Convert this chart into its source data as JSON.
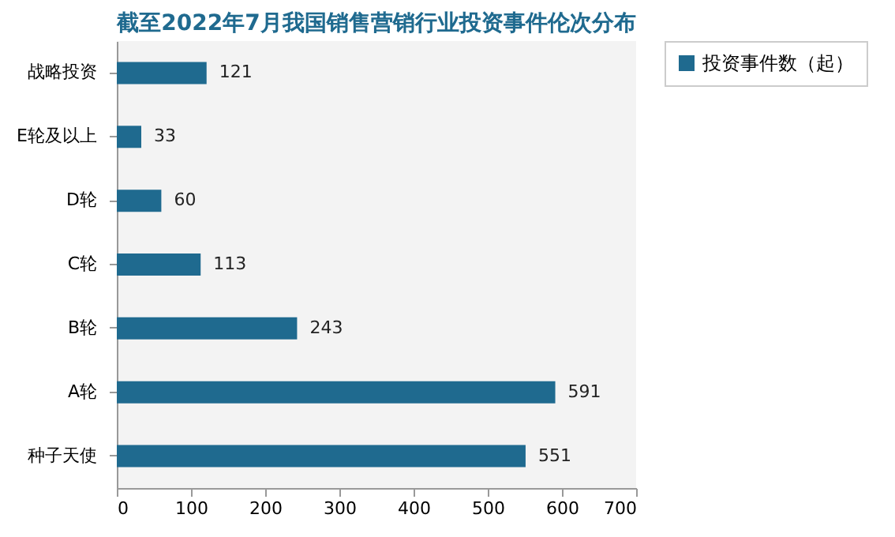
{
  "chart_data": {
    "type": "bar",
    "orientation": "horizontal",
    "title": "截至2022年7月我国销售营销行业投资事件伦次分布",
    "categories": [
      "战略投资",
      "E轮及以上",
      "D轮",
      "C轮",
      "B轮",
      "A轮",
      "种子天使"
    ],
    "series": [
      {
        "name": "投资事件数（起）",
        "color": "#1f6a8f",
        "values": [
          121,
          33,
          60,
          113,
          243,
          591,
          551
        ]
      }
    ],
    "xlim": [
      0,
      700
    ],
    "xticks": [
      0,
      100,
      200,
      300,
      400,
      500,
      600,
      700
    ],
    "data_labels": true,
    "legend": "right",
    "grid": false
  }
}
